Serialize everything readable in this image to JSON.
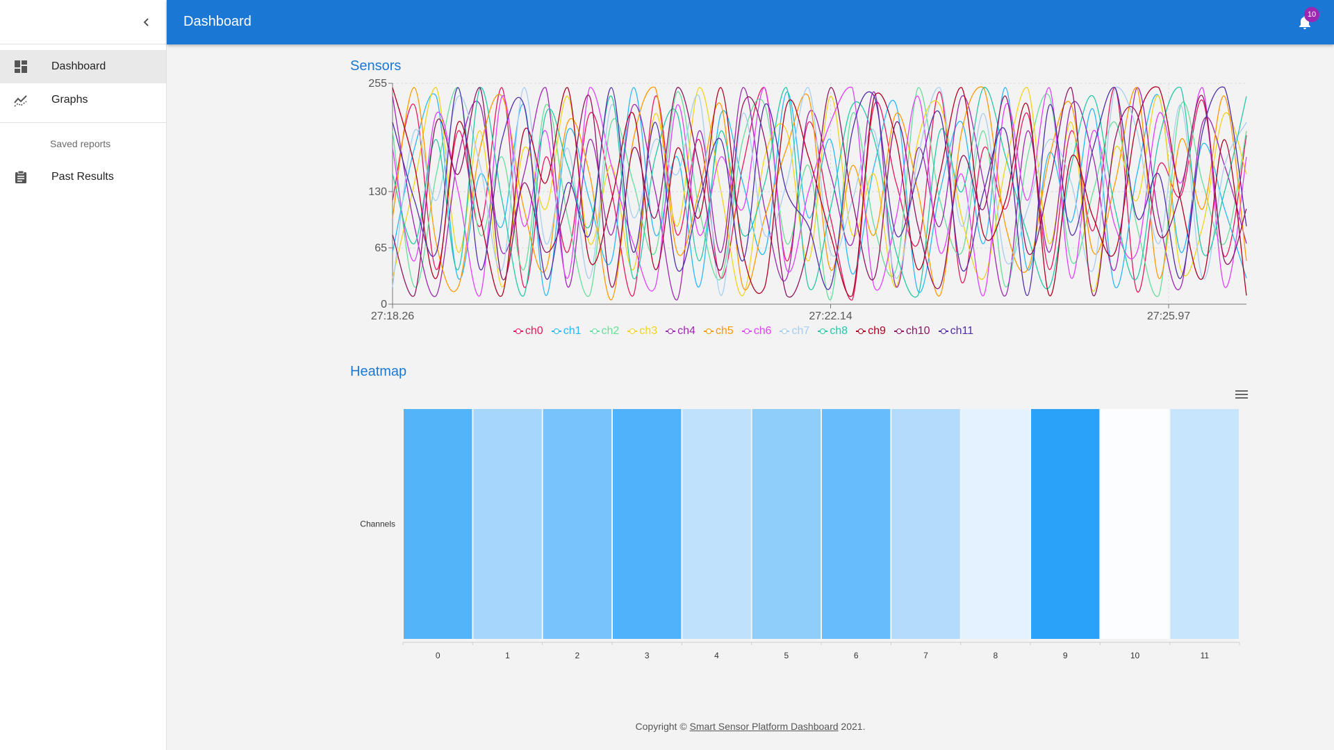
{
  "appbar": {
    "title": "Dashboard",
    "notifications": "10"
  },
  "sidebar": {
    "items": [
      {
        "label": "Dashboard",
        "icon": "dashboard-icon",
        "active": true
      },
      {
        "label": "Graphs",
        "icon": "graphs-icon",
        "active": false
      }
    ],
    "subheader": "Saved reports",
    "saved": [
      {
        "label": "Past Results",
        "icon": "clipboard-icon"
      }
    ]
  },
  "sensors": {
    "title": "Sensors"
  },
  "heatmap": {
    "title": "Heatmap"
  },
  "footer": {
    "prefix": "Copyright © ",
    "link": "Smart Sensor Platform Dashboard",
    "suffix": " 2021."
  },
  "chart_data": [
    {
      "type": "line",
      "title": "Sensors",
      "x_tick_labels": [
        "27:18.26",
        "27:22.14",
        "27:25.97"
      ],
      "y_ticks": [
        0,
        65,
        130,
        255
      ],
      "ylim": [
        0,
        255
      ],
      "grid": true,
      "legend_position": "bottom",
      "series": [
        {
          "name": "ch0",
          "color": "#e8175d",
          "values": [
            120,
            230,
            40,
            200,
            90,
            250,
            20,
            170,
            60,
            220,
            130,
            10,
            240,
            80,
            190,
            30,
            160,
            250,
            50,
            210,
            100,
            5,
            230,
            140,
            70,
            245,
            25,
            180,
            110,
            220,
            40,
            200,
            85,
            250,
            15,
            160,
            125,
            235,
            55,
            195
          ]
        },
        {
          "name": "ch1",
          "color": "#29b6f6",
          "values": [
            60,
            180,
            240,
            30,
            150,
            90,
            230,
            10,
            200,
            120,
            50,
            250,
            80,
            170,
            20,
            220,
            140,
            60,
            245,
            100,
            190,
            35,
            160,
            230,
            15,
            130,
            210,
            70,
            250,
            40,
            175,
            95,
            225,
            20,
            150,
            240,
            60,
            185,
            110,
            30
          ]
        },
        {
          "name": "ch2",
          "color": "#66dd99",
          "values": [
            200,
            20,
            150,
            250,
            80,
            170,
            40,
            230,
            100,
            10,
            210,
            140,
            60,
            245,
            110,
            30,
            190,
            230,
            70,
            160,
            5,
            220,
            90,
            40,
            250,
            120,
            60,
            200,
            20,
            170,
            240,
            50,
            130,
            210,
            90,
            10,
            230,
            140,
            70,
            200
          ]
        },
        {
          "name": "ch3",
          "color": "#f2d31b",
          "values": [
            30,
            140,
            250,
            60,
            200,
            20,
            180,
            110,
            240,
            70,
            160,
            40,
            220,
            90,
            250,
            130,
            10,
            170,
            200,
            50,
            240,
            80,
            150,
            20,
            190,
            230,
            100,
            30,
            160,
            250,
            70,
            210,
            15,
            180,
            120,
            240,
            40,
            90,
            220,
            150
          ]
        },
        {
          "name": "ch4",
          "color": "#9c27b0",
          "values": [
            240,
            90,
            10,
            170,
            230,
            60,
            150,
            250,
            20,
            190,
            80,
            230,
            130,
            5,
            200,
            60,
            250,
            110,
            30,
            220,
            150,
            70,
            245,
            20,
            180,
            90,
            240,
            140,
            10,
            200,
            60,
            230,
            170,
            40,
            250,
            100,
            20,
            210,
            160,
            70
          ]
        },
        {
          "name": "ch5",
          "color": "#ff9800",
          "values": [
            100,
            250,
            70,
            20,
            180,
            240,
            110,
            40,
            210,
            150,
            5,
            190,
            250,
            60,
            130,
            230,
            20,
            100,
            180,
            240,
            40,
            160,
            80,
            220,
            130,
            10,
            200,
            250,
            90,
            40,
            170,
            230,
            60,
            140,
            250,
            30,
            190,
            110,
            240,
            50
          ]
        },
        {
          "name": "ch6",
          "color": "#e040fb",
          "values": [
            180,
            50,
            220,
            130,
            10,
            240,
            90,
            200,
            30,
            250,
            160,
            70,
            20,
            230,
            80,
            170,
            110,
            250,
            40,
            130,
            210,
            250,
            20,
            100,
            240,
            60,
            150,
            10,
            230,
            120,
            250,
            30,
            200,
            90,
            60,
            220,
            140,
            250,
            20,
            170
          ]
        },
        {
          "name": "ch7",
          "color": "#a6cdf0",
          "values": [
            20,
            200,
            120,
            240,
            160,
            40,
            250,
            70,
            180,
            30,
            230,
            100,
            190,
            150,
            240,
            10,
            220,
            80,
            140,
            250,
            60,
            120,
            200,
            30,
            170,
            250,
            90,
            220,
            50,
            110,
            190,
            140,
            40,
            250,
            200,
            70,
            230,
            30,
            160,
            210
          ]
        },
        {
          "name": "ch8",
          "color": "#26c6a6",
          "values": [
            150,
            70,
            190,
            40,
            250,
            120,
            10,
            220,
            160,
            90,
            240,
            30,
            170,
            220,
            50,
            200,
            80,
            140,
            250,
            20,
            110,
            230,
            190,
            60,
            10,
            200,
            130,
            250,
            170,
            80,
            20,
            160,
            240,
            110,
            30,
            190,
            250,
            60,
            130,
            240
          ]
        },
        {
          "name": "ch9",
          "color": "#b00020",
          "values": [
            250,
            160,
            30,
            210,
            100,
            10,
            200,
            140,
            250,
            50,
            120,
            220,
            40,
            180,
            100,
            250,
            60,
            20,
            230,
            170,
            80,
            10,
            240,
            190,
            40,
            150,
            250,
            80,
            120,
            230,
            10,
            170,
            100,
            60,
            210,
            250,
            120,
            30,
            190,
            10
          ]
        },
        {
          "name": "ch10",
          "color": "#8e1560",
          "values": [
            80,
            10,
            210,
            150,
            250,
            30,
            140,
            60,
            120,
            240,
            20,
            180,
            100,
            250,
            160,
            40,
            230,
            190,
            10,
            70,
            250,
            120,
            30,
            210,
            90,
            20,
            170,
            110,
            240,
            60,
            140,
            250,
            10,
            190,
            220,
            80,
            130,
            240,
            50,
            110
          ]
        },
        {
          "name": "ch11",
          "color": "#512da8",
          "values": [
            210,
            120,
            60,
            250,
            40,
            190,
            230,
            30,
            140,
            80,
            250,
            60,
            210,
            40,
            120,
            190,
            50,
            230,
            130,
            90,
            20,
            200,
            240,
            80,
            150,
            220,
            40,
            130,
            200,
            10,
            230,
            80,
            180,
            250,
            100,
            150,
            30,
            200,
            250,
            90
          ]
        }
      ]
    },
    {
      "type": "heatmap",
      "title": "Heatmap",
      "ylabel": "Channels",
      "categories": [
        "0",
        "1",
        "2",
        "3",
        "4",
        "5",
        "6",
        "7",
        "8",
        "9",
        "10",
        "11"
      ],
      "colors": [
        "#53b4fa",
        "#a6d6fc",
        "#79c3fb",
        "#4fb2fa",
        "#bfe1fc",
        "#8fcdfb",
        "#67bcfb",
        "#b2dbfc",
        "#e3f2fe",
        "#2aa2fa",
        "#fbfdff",
        "#c7e5fd"
      ]
    }
  ]
}
